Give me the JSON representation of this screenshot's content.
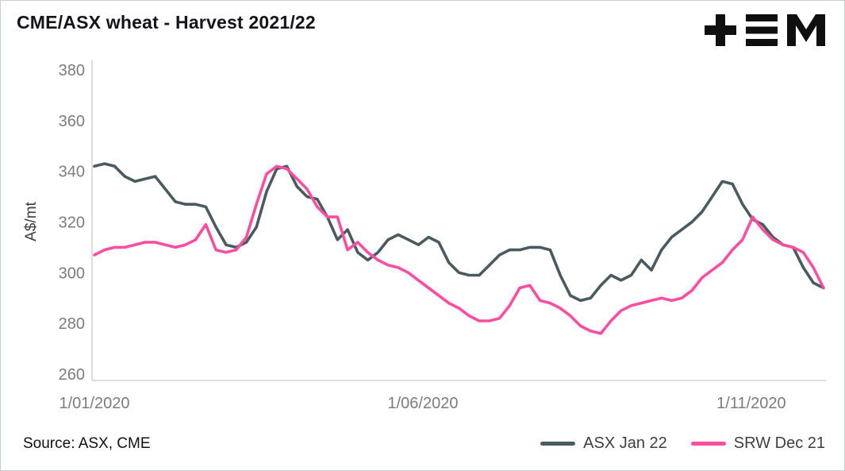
{
  "title": "CME/ASX wheat - Harvest 2021/22",
  "source": "Source: ASX, CME",
  "logo": {
    "alt": "tem-logo"
  },
  "chart_data": {
    "type": "line",
    "title": "CME/ASX wheat - Harvest 2021/22",
    "xlabel": "",
    "ylabel": "A$/mt",
    "ylim": [
      260,
      380
    ],
    "y_ticks": [
      260,
      280,
      300,
      320,
      340,
      360,
      380
    ],
    "x_range_months": [
      0,
      11.1
    ],
    "x_ticks": [
      {
        "label": "1/01/2020",
        "month": 0
      },
      {
        "label": "1/06/2020",
        "month": 5
      },
      {
        "label": "1/11/2020",
        "month": 10
      }
    ],
    "grid": false,
    "legend_position": "bottom-right",
    "axis_color": "#d2d2d2",
    "tick_label_color": "#7c7c7c",
    "series": [
      {
        "name": "ASX Jan 22",
        "color": "#4a5b60",
        "values": [
          342,
          343,
          342,
          338,
          336,
          337,
          338,
          333,
          328,
          327,
          327,
          326,
          318,
          311,
          310,
          312,
          318,
          332,
          341,
          342,
          334,
          330,
          329,
          322,
          313,
          317,
          308,
          305,
          308,
          313,
          315,
          313,
          311,
          314,
          312,
          304,
          300,
          299,
          299,
          303,
          307,
          309,
          309,
          310,
          310,
          309,
          299,
          291,
          289,
          290,
          295,
          299,
          297,
          299,
          305,
          301,
          309,
          314,
          317,
          320,
          324,
          330,
          336,
          335,
          327,
          321,
          319,
          314,
          311,
          310,
          302,
          296,
          294
        ]
      },
      {
        "name": "SRW Dec 21",
        "color": "#fb4ea1",
        "values": [
          307,
          309,
          310,
          310,
          311,
          312,
          312,
          311,
          310,
          311,
          313,
          319,
          309,
          308,
          309,
          314,
          327,
          339,
          342,
          341,
          337,
          333,
          326,
          322,
          322,
          309,
          312,
          308,
          305,
          303,
          302,
          300,
          297,
          294,
          291,
          288,
          286,
          283,
          281,
          281,
          282,
          287,
          294,
          295,
          289,
          288,
          286,
          283,
          279,
          277,
          276,
          281,
          285,
          287,
          288,
          289,
          290,
          289,
          290,
          293,
          298,
          301,
          304,
          309,
          313,
          322,
          317,
          313,
          311,
          310,
          308,
          302,
          294
        ]
      }
    ]
  }
}
